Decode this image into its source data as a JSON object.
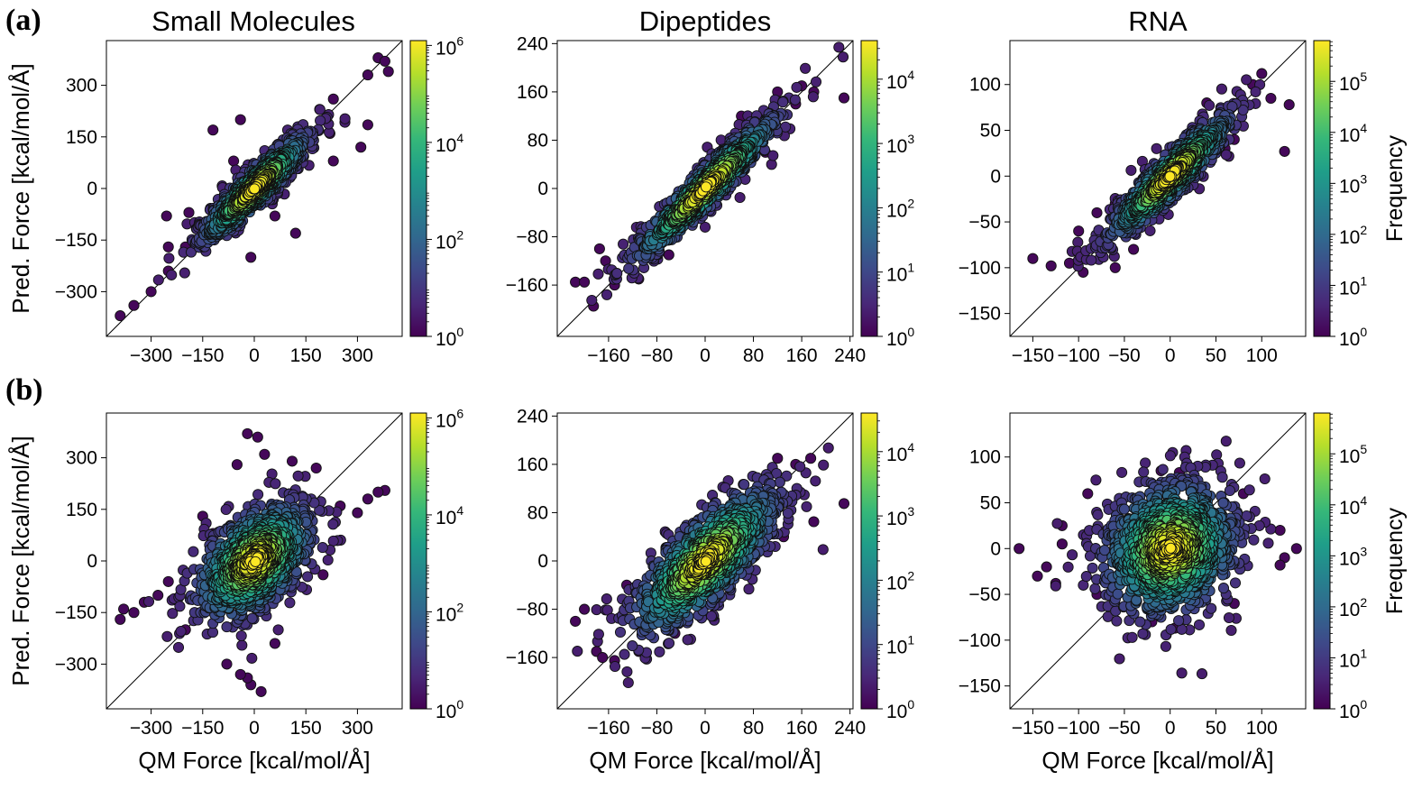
{
  "panel_labels": [
    "(a)",
    "(b)"
  ],
  "column_titles": [
    "Small Molecules",
    "Dipeptides",
    "RNA"
  ],
  "shared_labels": {
    "ylabel": "Pred. Force [kcal/mol/Å]",
    "xlabel": "QM Force [kcal/mol/Å]",
    "colorbar_label": "Frequency"
  },
  "colors": {
    "viridis": [
      "#440154",
      "#482878",
      "#3e4989",
      "#31688e",
      "#26828e",
      "#1f9e89",
      "#35b779",
      "#6ece58",
      "#b5de2b",
      "#fde725"
    ],
    "diagonal": "#000000",
    "marker_edge": "#111111"
  },
  "chart_data": [
    {
      "id": "a-small-molecules",
      "row": "(a)",
      "type": "scatter",
      "title": "Small Molecules",
      "xlim": [
        -430,
        430
      ],
      "ylim": [
        -430,
        430
      ],
      "xticks": [
        -300,
        -150,
        0,
        150,
        300
      ],
      "yticks": [
        -300,
        -150,
        0,
        150,
        300
      ],
      "xtick_labels": [
        "−300",
        "−150",
        "0",
        "150",
        "300"
      ],
      "ytick_labels": [
        "−300",
        "−150",
        "0",
        "150",
        "300"
      ],
      "xlabel": "",
      "ylabel": "Pred. Force [kcal/mol/Å]",
      "spread_along": 110,
      "spread_across": 24,
      "core_points": 820,
      "outliers": [
        [
          -390,
          -370
        ],
        [
          -350,
          -340
        ],
        [
          -300,
          -300
        ],
        [
          -250,
          -240
        ],
        [
          -200,
          -170
        ],
        [
          -160,
          -120
        ],
        [
          -250,
          -170
        ],
        [
          -255,
          -80
        ],
        [
          360,
          380
        ],
        [
          380,
          370
        ],
        [
          330,
          330
        ],
        [
          390,
          340
        ],
        [
          330,
          185
        ],
        [
          310,
          120
        ],
        [
          230,
          80
        ],
        [
          220,
          160
        ],
        [
          230,
          260
        ],
        [
          190,
          230
        ],
        [
          -120,
          170
        ],
        [
          -40,
          200
        ],
        [
          -60,
          80
        ],
        [
          60,
          -80
        ],
        [
          120,
          -130
        ],
        [
          -10,
          -200
        ],
        [
          -100,
          -60
        ],
        [
          80,
          100
        ],
        [
          -190,
          -70
        ]
      ],
      "colorbar": {
        "vmin_exp": 0,
        "vmax_exp": 6.1,
        "tick_exps": [
          0,
          2,
          4,
          6
        ],
        "tick_labels": [
          "10",
          "10",
          "10",
          "10"
        ],
        "tick_sups": [
          "0",
          "2",
          "4",
          "6"
        ],
        "label": ""
      }
    },
    {
      "id": "a-dipeptides",
      "row": "(a)",
      "type": "scatter",
      "title": "Dipeptides",
      "xlim": [
        -245,
        245
      ],
      "ylim": [
        -245,
        245
      ],
      "xticks": [
        -160,
        -80,
        0,
        80,
        160,
        240
      ],
      "yticks": [
        -160,
        -80,
        0,
        80,
        160,
        240
      ],
      "xtick_labels": [
        "−160",
        "−80",
        "0",
        "80",
        "160",
        "240"
      ],
      "ytick_labels": [
        "−160",
        "−80",
        "0",
        "80",
        "160",
        "240"
      ],
      "xlabel": "",
      "ylabel": "",
      "spread_along": 85,
      "spread_across": 14,
      "core_points": 820,
      "outliers": [
        [
          -215,
          -155
        ],
        [
          -200,
          -155
        ],
        [
          -185,
          -195
        ],
        [
          -150,
          -160
        ],
        [
          -175,
          -100
        ],
        [
          -165,
          -120
        ],
        [
          230,
          150
        ],
        [
          180,
          160
        ],
        [
          160,
          170
        ],
        [
          150,
          140
        ],
        [
          120,
          160
        ],
        [
          -110,
          -150
        ],
        [
          -60,
          -110
        ],
        [
          60,
          120
        ],
        [
          100,
          60
        ],
        [
          -20,
          -40
        ]
      ],
      "colorbar": {
        "vmin_exp": 0,
        "vmax_exp": 4.6,
        "tick_exps": [
          0,
          1,
          2,
          3,
          4
        ],
        "tick_labels": [
          "10",
          "10",
          "10",
          "10",
          "10"
        ],
        "tick_sups": [
          "0",
          "1",
          "2",
          "3",
          "4"
        ],
        "label": ""
      }
    },
    {
      "id": "a-rna",
      "row": "(a)",
      "type": "scatter",
      "title": "RNA",
      "xlim": [
        -175,
        148
      ],
      "ylim": [
        -175,
        148
      ],
      "xticks": [
        -150,
        -100,
        -50,
        0,
        50,
        100
      ],
      "yticks": [
        -150,
        -100,
        -50,
        0,
        50,
        100
      ],
      "xtick_labels": [
        "−150",
        "−100",
        "−50",
        "0",
        "50",
        "100"
      ],
      "ytick_labels": [
        "−150",
        "−100",
        "−50",
        "0",
        "50",
        "100"
      ],
      "xlabel": "",
      "ylabel": "",
      "spread_along": 48,
      "spread_across": 10,
      "core_points": 860,
      "outliers": [
        [
          -150,
          -90
        ],
        [
          -130,
          -98
        ],
        [
          -110,
          -95
        ],
        [
          -95,
          -105
        ],
        [
          100,
          112
        ],
        [
          125,
          27
        ],
        [
          130,
          78
        ],
        [
          110,
          85
        ],
        [
          90,
          100
        ],
        [
          -100,
          -60
        ],
        [
          -80,
          -40
        ],
        [
          -60,
          -30
        ],
        [
          40,
          80
        ],
        [
          70,
          40
        ],
        [
          -40,
          -80
        ],
        [
          60,
          30
        ],
        [
          -60,
          -100
        ]
      ],
      "colorbar": {
        "vmin_exp": 0,
        "vmax_exp": 5.8,
        "tick_exps": [
          0,
          1,
          2,
          3,
          4,
          5
        ],
        "tick_labels": [
          "10",
          "10",
          "10",
          "10",
          "10",
          "10"
        ],
        "tick_sups": [
          "0",
          "1",
          "2",
          "3",
          "4",
          "5"
        ],
        "label": "Frequency"
      }
    },
    {
      "id": "b-small-molecules",
      "row": "(b)",
      "type": "scatter",
      "title": "",
      "xlim": [
        -430,
        430
      ],
      "ylim": [
        -430,
        430
      ],
      "xticks": [
        -300,
        -150,
        0,
        150,
        300
      ],
      "yticks": [
        -300,
        -150,
        0,
        150,
        300
      ],
      "xtick_labels": [
        "−300",
        "−150",
        "0",
        "150",
        "300"
      ],
      "ytick_labels": [
        "−300",
        "−150",
        "0",
        "150",
        "300"
      ],
      "xlabel": "QM Force [kcal/mol/Å]",
      "ylabel": "Pred. Force [kcal/mol/Å]",
      "spread_along": 105,
      "spread_across": 62,
      "core_points": 1000,
      "outliers": [
        [
          -390,
          -170
        ],
        [
          -380,
          -140
        ],
        [
          -350,
          -150
        ],
        [
          -320,
          -120
        ],
        [
          -280,
          -100
        ],
        [
          380,
          205
        ],
        [
          360,
          200
        ],
        [
          330,
          180
        ],
        [
          300,
          140
        ],
        [
          250,
          160
        ],
        [
          -20,
          370
        ],
        [
          10,
          360
        ],
        [
          30,
          310
        ],
        [
          -50,
          280
        ],
        [
          -10,
          -360
        ],
        [
          20,
          -380
        ],
        [
          -20,
          -340
        ],
        [
          -40,
          -330
        ],
        [
          -80,
          -300
        ],
        [
          60,
          -240
        ],
        [
          110,
          290
        ],
        [
          -200,
          -200
        ],
        [
          -250,
          -60
        ],
        [
          200,
          -40
        ],
        [
          180,
          270
        ],
        [
          -120,
          80
        ],
        [
          -150,
          130
        ],
        [
          140,
          60
        ]
      ],
      "colorbar": {
        "vmin_exp": 0,
        "vmax_exp": 6.1,
        "tick_exps": [
          0,
          2,
          4,
          6
        ],
        "tick_labels": [
          "10",
          "10",
          "10",
          "10"
        ],
        "tick_sups": [
          "0",
          "2",
          "4",
          "6"
        ],
        "label": ""
      }
    },
    {
      "id": "b-dipeptides",
      "row": "(b)",
      "type": "scatter",
      "title": "",
      "xlim": [
        -245,
        245
      ],
      "ylim": [
        -245,
        245
      ],
      "xticks": [
        -160,
        -80,
        0,
        80,
        160,
        240
      ],
      "yticks": [
        -160,
        -80,
        0,
        80,
        160,
        240
      ],
      "xtick_labels": [
        "−160",
        "−80",
        "0",
        "80",
        "160",
        "240"
      ],
      "ytick_labels": [
        "−160",
        "−80",
        "0",
        "80",
        "160",
        "240"
      ],
      "xlabel": "QM Force [kcal/mol/Å]",
      "ylabel": "",
      "spread_along": 82,
      "spread_across": 30,
      "core_points": 950,
      "outliers": [
        [
          -215,
          -100
        ],
        [
          -200,
          -80
        ],
        [
          -180,
          -150
        ],
        [
          -170,
          -160
        ],
        [
          -150,
          -165
        ],
        [
          230,
          95
        ],
        [
          180,
          65
        ],
        [
          175,
          170
        ],
        [
          150,
          160
        ],
        [
          120,
          170
        ],
        [
          -110,
          -150
        ],
        [
          80,
          140
        ],
        [
          -50,
          -120
        ],
        [
          130,
          40
        ],
        [
          -130,
          -40
        ]
      ],
      "colorbar": {
        "vmin_exp": 0,
        "vmax_exp": 4.6,
        "tick_exps": [
          0,
          1,
          2,
          3,
          4
        ],
        "tick_labels": [
          "10",
          "10",
          "10",
          "10",
          "10"
        ],
        "tick_sups": [
          "0",
          "1",
          "2",
          "3",
          "4"
        ],
        "label": ""
      }
    },
    {
      "id": "b-rna",
      "row": "(b)",
      "type": "scatter",
      "title": "",
      "xlim": [
        -175,
        148
      ],
      "ylim": [
        -175,
        148
      ],
      "xticks": [
        -150,
        -100,
        -50,
        0,
        50,
        100
      ],
      "yticks": [
        -150,
        -100,
        -50,
        0,
        50,
        100
      ],
      "xtick_labels": [
        "−150",
        "−100",
        "−50",
        "0",
        "50",
        "100"
      ],
      "ytick_labels": [
        "−150",
        "−100",
        "−50",
        "0",
        "50",
        "100"
      ],
      "xlabel": "QM Force [kcal/mol/Å]",
      "ylabel": "",
      "spread_along": 40,
      "spread_across": 34,
      "core_points": 1150,
      "outliers": [
        [
          -165,
          0
        ],
        [
          -145,
          -30
        ],
        [
          -135,
          -20
        ],
        [
          -125,
          -38
        ],
        [
          -118,
          5
        ],
        [
          -118,
          25
        ],
        [
          138,
          0
        ],
        [
          125,
          -10
        ],
        [
          120,
          -18
        ],
        [
          120,
          20
        ],
        [
          10,
          83
        ],
        [
          -10,
          85
        ],
        [
          5,
          -87
        ],
        [
          -20,
          -80
        ],
        [
          -90,
          60
        ],
        [
          80,
          60
        ],
        [
          -80,
          -50
        ],
        [
          70,
          -60
        ]
      ],
      "colorbar": {
        "vmin_exp": 0,
        "vmax_exp": 5.8,
        "tick_exps": [
          0,
          1,
          2,
          3,
          4,
          5
        ],
        "tick_labels": [
          "10",
          "10",
          "10",
          "10",
          "10",
          "10"
        ],
        "tick_sups": [
          "0",
          "1",
          "2",
          "3",
          "4",
          "5"
        ],
        "label": "Frequency"
      }
    }
  ]
}
